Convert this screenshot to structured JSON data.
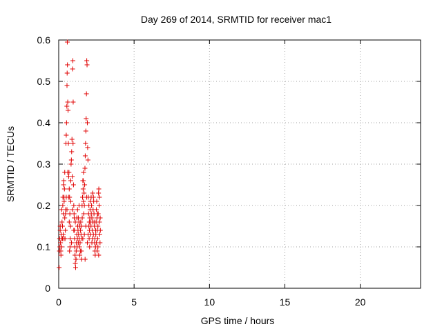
{
  "chart_data": {
    "type": "scatter",
    "title": "Day 269 of 2014, SRMTID for receiver mac1",
    "xlabel": "GPS time / hours",
    "ylabel": "SRMTID / TECUs",
    "xlim": [
      0,
      24
    ],
    "ylim": [
      0,
      0.6
    ],
    "xticks": [
      0,
      5,
      10,
      15,
      20
    ],
    "yticks": [
      0,
      0.1,
      0.2,
      0.3,
      0.4,
      0.5,
      0.6
    ],
    "xtick_labels": [
      "0",
      "5",
      "10",
      "15",
      "20"
    ],
    "ytick_labels": [
      "0",
      "0.1",
      "0.2",
      "0.3",
      "0.4",
      "0.5",
      "0.6"
    ],
    "grid": true,
    "marker": "+",
    "color": "#e00000",
    "points": [
      [
        0.03,
        0.05
      ],
      [
        0.05,
        0.09
      ],
      [
        0.06,
        0.12
      ],
      [
        0.08,
        0.1
      ],
      [
        0.1,
        0.14
      ],
      [
        0.12,
        0.11
      ],
      [
        0.14,
        0.09
      ],
      [
        0.16,
        0.13
      ],
      [
        0.18,
        0.12
      ],
      [
        0.2,
        0.1
      ],
      [
        0.22,
        0.16
      ],
      [
        0.25,
        0.15
      ],
      [
        0.27,
        0.2
      ],
      [
        0.28,
        0.22
      ],
      [
        0.3,
        0.18
      ],
      [
        0.32,
        0.25
      ],
      [
        0.34,
        0.26
      ],
      [
        0.36,
        0.21
      ],
      [
        0.38,
        0.24
      ],
      [
        0.4,
        0.17
      ],
      [
        0.42,
        0.12
      ],
      [
        0.44,
        0.14
      ],
      [
        0.46,
        0.19
      ],
      [
        0.48,
        0.35
      ],
      [
        0.5,
        0.37
      ],
      [
        0.52,
        0.4
      ],
      [
        0.54,
        0.44
      ],
      [
        0.55,
        0.49
      ],
      [
        0.56,
        0.52
      ],
      [
        0.57,
        0.595
      ],
      [
        0.58,
        0.54
      ],
      [
        0.6,
        0.45
      ],
      [
        0.62,
        0.43
      ],
      [
        0.64,
        0.35
      ],
      [
        0.66,
        0.27
      ],
      [
        0.68,
        0.28
      ],
      [
        0.7,
        0.24
      ],
      [
        0.72,
        0.22
      ],
      [
        0.74,
        0.18
      ],
      [
        0.76,
        0.12
      ],
      [
        0.78,
        0.15
      ],
      [
        0.8,
        0.21
      ],
      [
        0.82,
        0.3
      ],
      [
        0.84,
        0.31
      ],
      [
        0.86,
        0.33
      ],
      [
        0.88,
        0.36
      ],
      [
        0.9,
        0.27
      ],
      [
        0.92,
        0.53
      ],
      [
        0.94,
        0.55
      ],
      [
        0.96,
        0.45
      ],
      [
        0.98,
        0.25
      ],
      [
        1.0,
        0.2
      ],
      [
        1.02,
        0.18
      ],
      [
        1.04,
        0.14
      ],
      [
        1.06,
        0.1
      ],
      [
        1.08,
        0.08
      ],
      [
        1.1,
        0.06
      ],
      [
        1.12,
        0.05
      ],
      [
        1.14,
        0.07
      ],
      [
        1.16,
        0.09
      ],
      [
        1.18,
        0.11
      ],
      [
        1.2,
        0.13
      ],
      [
        1.22,
        0.1
      ],
      [
        1.24,
        0.12
      ],
      [
        1.26,
        0.15
      ],
      [
        1.28,
        0.14
      ],
      [
        1.3,
        0.11
      ],
      [
        1.32,
        0.13
      ],
      [
        1.34,
        0.16
      ],
      [
        1.36,
        0.12
      ],
      [
        1.38,
        0.1
      ],
      [
        1.4,
        0.08
      ],
      [
        1.42,
        0.11
      ],
      [
        1.44,
        0.14
      ],
      [
        1.46,
        0.16
      ],
      [
        1.48,
        0.13
      ],
      [
        1.5,
        0.09
      ],
      [
        1.52,
        0.07
      ],
      [
        1.54,
        0.12
      ],
      [
        1.56,
        0.17
      ],
      [
        1.58,
        0.22
      ],
      [
        1.6,
        0.26
      ],
      [
        1.62,
        0.24
      ],
      [
        1.64,
        0.21
      ],
      [
        1.66,
        0.18
      ],
      [
        1.68,
        0.23
      ],
      [
        1.7,
        0.2
      ],
      [
        1.72,
        0.25
      ],
      [
        1.74,
        0.29
      ],
      [
        1.76,
        0.32
      ],
      [
        1.78,
        0.35
      ],
      [
        1.8,
        0.38
      ],
      [
        1.82,
        0.41
      ],
      [
        1.84,
        0.47
      ],
      [
        1.86,
        0.55
      ],
      [
        1.88,
        0.54
      ],
      [
        1.9,
        0.4
      ],
      [
        1.92,
        0.34
      ],
      [
        1.94,
        0.31
      ],
      [
        1.96,
        0.22
      ],
      [
        1.98,
        0.18
      ],
      [
        2.0,
        0.15
      ],
      [
        2.02,
        0.12
      ],
      [
        2.04,
        0.14
      ],
      [
        2.06,
        0.17
      ],
      [
        2.08,
        0.19
      ],
      [
        2.1,
        0.16
      ],
      [
        2.12,
        0.13
      ],
      [
        2.14,
        0.15
      ],
      [
        2.16,
        0.18
      ],
      [
        2.18,
        0.2
      ],
      [
        2.2,
        0.17
      ],
      [
        2.22,
        0.14
      ],
      [
        2.24,
        0.12
      ],
      [
        2.26,
        0.16
      ],
      [
        2.28,
        0.19
      ],
      [
        2.3,
        0.22
      ],
      [
        2.32,
        0.21
      ],
      [
        2.34,
        0.18
      ],
      [
        2.36,
        0.15
      ],
      [
        2.38,
        0.11
      ],
      [
        2.4,
        0.09
      ],
      [
        2.42,
        0.08
      ],
      [
        2.44,
        0.1
      ],
      [
        2.46,
        0.13
      ],
      [
        2.48,
        0.16
      ],
      [
        2.5,
        0.19
      ],
      [
        2.52,
        0.21
      ],
      [
        2.54,
        0.17
      ],
      [
        2.56,
        0.14
      ],
      [
        2.58,
        0.12
      ],
      [
        2.6,
        0.15
      ],
      [
        2.62,
        0.18
      ],
      [
        2.64,
        0.23
      ],
      [
        2.66,
        0.24
      ],
      [
        2.68,
        0.2
      ],
      [
        2.7,
        0.16
      ],
      [
        2.72,
        0.13
      ],
      [
        2.74,
        0.11
      ],
      [
        2.76,
        0.14
      ],
      [
        0.1,
        0.15
      ],
      [
        0.3,
        0.13
      ],
      [
        0.5,
        0.22
      ],
      [
        0.7,
        0.16
      ],
      [
        0.9,
        0.19
      ],
      [
        1.1,
        0.16
      ],
      [
        1.3,
        0.17
      ],
      [
        1.5,
        0.15
      ],
      [
        1.7,
        0.13
      ],
      [
        1.9,
        0.11
      ],
      [
        2.1,
        0.21
      ],
      [
        2.3,
        0.13
      ],
      [
        2.5,
        0.11
      ],
      [
        2.7,
        0.22
      ],
      [
        0.2,
        0.19
      ],
      [
        0.4,
        0.28
      ],
      [
        0.6,
        0.28
      ],
      [
        0.8,
        0.26
      ],
      [
        1.0,
        0.14
      ],
      [
        1.2,
        0.17
      ],
      [
        1.4,
        0.15
      ],
      [
        1.6,
        0.12
      ],
      [
        1.8,
        0.15
      ],
      [
        2.0,
        0.2
      ],
      [
        2.2,
        0.11
      ],
      [
        2.4,
        0.12
      ],
      [
        2.6,
        0.1
      ],
      [
        0.15,
        0.08
      ],
      [
        0.35,
        0.12
      ],
      [
        0.55,
        0.19
      ],
      [
        0.75,
        0.1
      ],
      [
        0.95,
        0.35
      ],
      [
        1.15,
        0.07
      ],
      [
        1.35,
        0.2
      ],
      [
        1.55,
        0.2
      ],
      [
        1.75,
        0.07
      ],
      [
        1.95,
        0.13
      ],
      [
        2.15,
        0.22
      ],
      [
        2.35,
        0.16
      ],
      [
        2.55,
        0.09
      ],
      [
        2.75,
        0.17
      ],
      [
        0.45,
        0.18
      ],
      [
        0.65,
        0.22
      ],
      [
        0.85,
        0.11
      ],
      [
        1.05,
        0.12
      ],
      [
        1.25,
        0.19
      ],
      [
        1.45,
        0.09
      ],
      [
        1.65,
        0.28
      ],
      [
        1.85,
        0.22
      ],
      [
        2.05,
        0.1
      ],
      [
        2.25,
        0.23
      ],
      [
        2.45,
        0.14
      ],
      [
        2.65,
        0.08
      ],
      [
        0.25,
        0.12
      ],
      [
        0.35,
        0.22
      ],
      [
        0.72,
        0.09
      ],
      [
        1.03,
        0.17
      ],
      [
        1.63,
        0.26
      ],
      [
        2.03,
        0.16
      ],
      [
        2.58,
        0.18
      ]
    ]
  }
}
